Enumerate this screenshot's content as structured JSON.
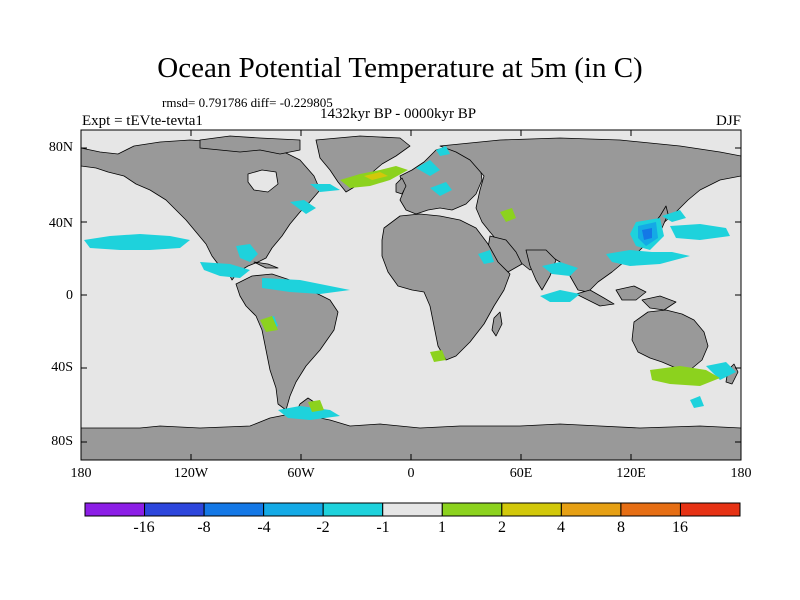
{
  "title": "Ocean Potential Temperature at 5m (in C)",
  "stats": "rmsd= 0.791786 diff= -0.229805",
  "period": "1432kyr BP - 0000kyr BP",
  "experiment": "Expt = tEVte-tevta1",
  "season": "DJF",
  "map": {
    "projection": "cylindrical-equidistant",
    "lon_range": [
      -180,
      180
    ],
    "lat_range": [
      -90,
      90
    ],
    "ocean_color": "#e6e6e6",
    "land_color": "#999999",
    "y_ticks": [
      "80N",
      "40N",
      "0",
      "40S",
      "80S"
    ],
    "x_ticks": [
      "180",
      "120W",
      "60W",
      "0",
      "60E",
      "120E",
      "180"
    ]
  },
  "colorbar": {
    "colors": [
      "#8c1ee6",
      "#2d46dc",
      "#1478e6",
      "#14aae6",
      "#1ed2dc",
      "#e6e6e6",
      "#8cd21e",
      "#d2c80a",
      "#e6a014",
      "#e66e14",
      "#e63214"
    ],
    "labels": [
      "-16",
      "-8",
      "-4",
      "-2",
      "-1",
      "1",
      "2",
      "4",
      "8",
      "16"
    ]
  }
}
